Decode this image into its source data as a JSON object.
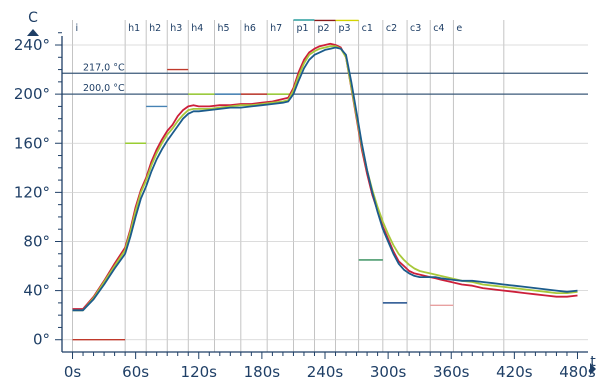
{
  "chart_data": {
    "type": "line",
    "xlabel": "t",
    "ylabel": "C",
    "xlim": [
      -10,
      490
    ],
    "ylim": [
      -10,
      262
    ],
    "x_ticks": [
      {
        "value": 0,
        "label": "0s"
      },
      {
        "value": 60,
        "label": "60s"
      },
      {
        "value": 120,
        "label": "120s"
      },
      {
        "value": 180,
        "label": "180s"
      },
      {
        "value": 240,
        "label": "240s"
      },
      {
        "value": 300,
        "label": "300s"
      },
      {
        "value": 360,
        "label": "360s"
      },
      {
        "value": 420,
        "label": "420s"
      },
      {
        "value": 480,
        "label": "480s"
      }
    ],
    "y_ticks": [
      {
        "value": 0,
        "label": "0°"
      },
      {
        "value": 40,
        "label": "40°"
      },
      {
        "value": 80,
        "label": "80°"
      },
      {
        "value": 120,
        "label": "120°"
      },
      {
        "value": 160,
        "label": "160°"
      },
      {
        "value": 200,
        "label": "200°"
      },
      {
        "value": 240,
        "label": "240°"
      }
    ],
    "grid": true,
    "phases": [
      {
        "label": "i",
        "x": 0
      },
      {
        "label": "h1",
        "x": 50
      },
      {
        "label": "h2",
        "x": 70
      },
      {
        "label": "h3",
        "x": 90
      },
      {
        "label": "h4",
        "x": 110
      },
      {
        "label": "h5",
        "x": 135
      },
      {
        "label": "h6",
        "x": 160
      },
      {
        "label": "h7",
        "x": 185
      },
      {
        "label": "p1",
        "x": 210
      },
      {
        "label": "p2",
        "x": 230
      },
      {
        "label": "p3",
        "x": 250
      },
      {
        "label": "c1",
        "x": 272
      },
      {
        "label": "c2",
        "x": 295
      },
      {
        "label": "c3",
        "x": 318
      },
      {
        "label": "c4",
        "x": 340
      },
      {
        "label": "e",
        "x": 362
      },
      {
        "label": "",
        "x": 410
      }
    ],
    "reference_lines": [
      {
        "value": 217,
        "label": "217,0 °C",
        "color": "#3b5a7a"
      },
      {
        "value": 200,
        "label": "200,0 °C",
        "color": "#3b5a7a"
      }
    ],
    "setpoints": [
      {
        "x": [
          0,
          50
        ],
        "value": 0,
        "color": "#c0392b"
      },
      {
        "x": [
          50,
          70
        ],
        "value": 160,
        "color": "#9acd32"
      },
      {
        "x": [
          70,
          90
        ],
        "value": 190,
        "color": "#4682b4"
      },
      {
        "x": [
          90,
          110
        ],
        "value": 220,
        "color": "#c0392b"
      },
      {
        "x": [
          110,
          135
        ],
        "value": 200,
        "color": "#9acd32"
      },
      {
        "x": [
          135,
          160
        ],
        "value": 200,
        "color": "#4682b4"
      },
      {
        "x": [
          160,
          185
        ],
        "value": 200,
        "color": "#c0392b"
      },
      {
        "x": [
          185,
          210
        ],
        "value": 200,
        "color": "#9acd32"
      },
      {
        "x": [
          210,
          230
        ],
        "value": 265,
        "color": "#2a9d9d"
      },
      {
        "x": [
          230,
          250
        ],
        "value": 260,
        "color": "#8b1a1a"
      },
      {
        "x": [
          250,
          272
        ],
        "value": 260,
        "color": "#d4d400"
      },
      {
        "x": [
          272,
          295
        ],
        "value": 65,
        "color": "#2e8b57"
      },
      {
        "x": [
          295,
          318
        ],
        "value": 30,
        "color": "#1f4e8c"
      },
      {
        "x": [
          340,
          362
        ],
        "value": 28,
        "color": "#e8a0a0"
      }
    ],
    "series": [
      {
        "color": "#cc1f3a",
        "x": [
          0,
          10,
          20,
          30,
          40,
          50,
          55,
          60,
          65,
          70,
          75,
          80,
          85,
          90,
          95,
          100,
          105,
          110,
          115,
          120,
          130,
          140,
          150,
          160,
          170,
          180,
          190,
          200,
          205,
          210,
          215,
          220,
          225,
          230,
          235,
          240,
          245,
          250,
          255,
          260,
          265,
          270,
          275,
          280,
          285,
          290,
          295,
          300,
          305,
          310,
          315,
          320,
          325,
          330,
          335,
          340,
          345,
          350,
          360,
          370,
          380,
          390,
          400,
          410,
          420,
          430,
          440,
          450,
          460,
          470,
          480
        ],
        "y": [
          25,
          25,
          35,
          48,
          62,
          75,
          90,
          108,
          122,
          132,
          145,
          155,
          163,
          170,
          175,
          182,
          187,
          190,
          191,
          190,
          190,
          191,
          191,
          192,
          192,
          193,
          194,
          196,
          197,
          205,
          218,
          228,
          234,
          237,
          239,
          240,
          241,
          240,
          238,
          230,
          205,
          180,
          155,
          135,
          118,
          105,
          92,
          82,
          72,
          64,
          60,
          56,
          54,
          53,
          52,
          51,
          50,
          49,
          47,
          45,
          44,
          42,
          41,
          40,
          39,
          38,
          37,
          36,
          35,
          35,
          36
        ]
      },
      {
        "color": "#a8c83a",
        "x": [
          0,
          10,
          20,
          30,
          40,
          50,
          55,
          60,
          65,
          70,
          75,
          80,
          85,
          90,
          95,
          100,
          105,
          110,
          115,
          120,
          130,
          140,
          150,
          160,
          170,
          180,
          190,
          200,
          205,
          210,
          215,
          220,
          225,
          230,
          235,
          240,
          245,
          250,
          255,
          260,
          265,
          270,
          275,
          280,
          285,
          290,
          295,
          300,
          305,
          310,
          315,
          320,
          325,
          330,
          335,
          340,
          345,
          350,
          360,
          370,
          380,
          390,
          400,
          410,
          420,
          430,
          440,
          450,
          460,
          470,
          480
        ],
        "y": [
          24,
          24,
          34,
          47,
          60,
          73,
          88,
          105,
          120,
          130,
          142,
          152,
          160,
          167,
          172,
          178,
          183,
          187,
          188,
          188,
          188,
          189,
          190,
          191,
          191,
          192,
          193,
          194,
          195,
          203,
          215,
          225,
          232,
          235,
          237,
          238,
          239,
          239,
          237,
          230,
          206,
          182,
          158,
          138,
          122,
          108,
          96,
          86,
          77,
          70,
          65,
          61,
          58,
          56,
          55,
          54,
          53,
          52,
          50,
          48,
          47,
          45,
          44,
          43,
          42,
          41,
          40,
          39,
          38,
          38,
          39
        ]
      },
      {
        "color": "#1c5c8c",
        "x": [
          0,
          10,
          20,
          30,
          40,
          50,
          55,
          60,
          65,
          70,
          75,
          80,
          85,
          90,
          95,
          100,
          105,
          110,
          115,
          120,
          130,
          140,
          150,
          160,
          170,
          180,
          190,
          200,
          205,
          210,
          215,
          220,
          225,
          230,
          235,
          240,
          245,
          250,
          255,
          260,
          265,
          270,
          275,
          280,
          285,
          290,
          295,
          300,
          305,
          310,
          315,
          320,
          325,
          330,
          335,
          340,
          345,
          350,
          360,
          370,
          380,
          390,
          400,
          410,
          420,
          430,
          440,
          450,
          460,
          470,
          480
        ],
        "y": [
          24,
          24,
          33,
          45,
          58,
          70,
          84,
          100,
          115,
          125,
          137,
          147,
          155,
          162,
          168,
          174,
          180,
          184,
          186,
          186,
          187,
          188,
          189,
          189,
          190,
          191,
          192,
          193,
          194,
          200,
          211,
          221,
          228,
          232,
          234,
          236,
          237,
          238,
          237,
          232,
          210,
          185,
          160,
          138,
          120,
          104,
          90,
          80,
          70,
          62,
          57,
          54,
          52,
          51,
          51,
          51,
          51,
          50,
          49,
          48,
          48,
          47,
          46,
          45,
          44,
          43,
          42,
          41,
          40,
          39,
          40
        ]
      }
    ]
  }
}
